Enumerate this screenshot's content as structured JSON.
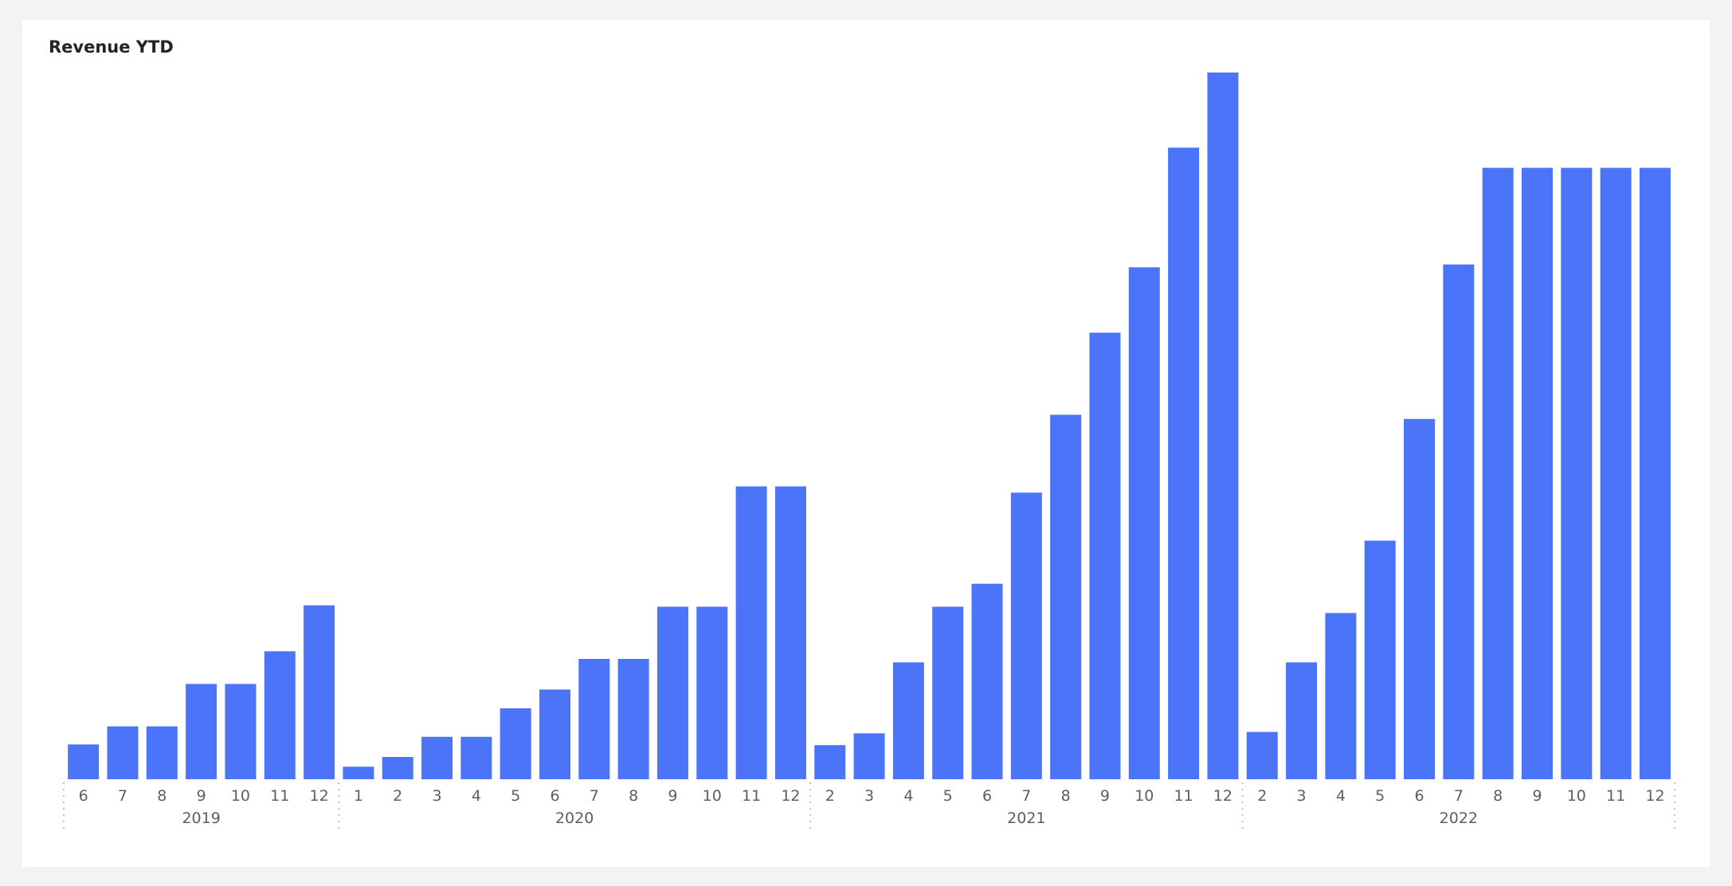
{
  "chart_data": {
    "type": "bar",
    "title": "Revenue YTD",
    "xlabel": "",
    "ylabel": "",
    "grid": false,
    "bar_color": "#4b74f9",
    "background": "#ffffff",
    "ylim": [
      0,
      100
    ],
    "groups": [
      {
        "year": "2019",
        "months": [
          "6",
          "7",
          "8",
          "9",
          "10",
          "11",
          "12"
        ],
        "values": [
          5.0,
          7.6,
          7.6,
          13.7,
          13.7,
          18.4,
          25.0
        ]
      },
      {
        "year": "2020",
        "months": [
          "1",
          "2",
          "3",
          "4",
          "5",
          "6",
          "7",
          "8",
          "9",
          "10",
          "11",
          "12"
        ],
        "values": [
          1.8,
          3.2,
          6.1,
          6.1,
          10.2,
          12.9,
          17.3,
          17.3,
          24.8,
          24.8,
          42.1,
          42.1
        ]
      },
      {
        "year": "2021",
        "months": [
          "2",
          "3",
          "4",
          "5",
          "6",
          "7",
          "8",
          "9",
          "10",
          "11",
          "12"
        ],
        "values": [
          4.9,
          6.6,
          16.8,
          24.8,
          28.1,
          41.2,
          52.4,
          64.2,
          73.6,
          90.8,
          101.6
        ]
      },
      {
        "year": "2022",
        "months": [
          "2",
          "3",
          "4",
          "5",
          "6",
          "7",
          "8",
          "9",
          "10",
          "11",
          "12"
        ],
        "values": [
          6.8,
          16.8,
          23.9,
          34.3,
          51.8,
          74.0,
          87.9,
          87.9,
          87.9,
          87.9,
          87.9
        ]
      }
    ]
  }
}
